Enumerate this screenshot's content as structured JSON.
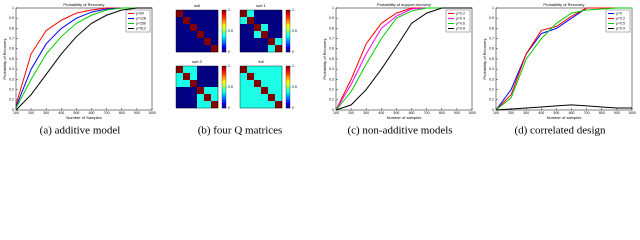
{
  "chart_data": [
    {
      "type": "line",
      "title": "Probability of Recovery",
      "xlabel": "Number of Samples",
      "ylabel": "Probability of Recovery",
      "x": [
        100,
        200,
        300,
        400,
        500,
        600,
        700,
        800,
        900,
        1000
      ],
      "series": [
        {
          "name": "p=64",
          "color": "#ff0000",
          "values": [
            0.05,
            0.55,
            0.78,
            0.88,
            0.95,
            0.98,
            1,
            1,
            1,
            1
          ]
        },
        {
          "name": "p=128",
          "color": "#0000ff",
          "values": [
            0.03,
            0.4,
            0.65,
            0.8,
            0.9,
            0.96,
            0.99,
            1,
            1,
            1
          ]
        },
        {
          "name": "p=256",
          "color": "#00cc00",
          "values": [
            0.02,
            0.3,
            0.55,
            0.72,
            0.85,
            0.93,
            0.98,
            1,
            1,
            1
          ]
        },
        {
          "name": "p=512",
          "color": "#000000",
          "values": [
            0,
            0.15,
            0.35,
            0.55,
            0.72,
            0.85,
            0.93,
            0.98,
            1,
            1
          ]
        }
      ],
      "xlim": [
        100,
        1000
      ],
      "ylim": [
        0,
        1
      ],
      "xticks": [
        100,
        200,
        300,
        400,
        500,
        600,
        700,
        800,
        900,
        1000
      ],
      "yticks": [
        0,
        0.1,
        0.2,
        0.3,
        0.4,
        0.5,
        0.6,
        0.7,
        0.8,
        0.9,
        1
      ],
      "legend": "upper right"
    },
    {
      "type": "heatmap",
      "title": "null",
      "values": [
        [
          1,
          0,
          0,
          0,
          0,
          0
        ],
        [
          0,
          1,
          0,
          0,
          0,
          0
        ],
        [
          0,
          0,
          1,
          0,
          0,
          0
        ],
        [
          0,
          0,
          0,
          1,
          0,
          0
        ],
        [
          0,
          0,
          0,
          0,
          1,
          0
        ],
        [
          0,
          0,
          0,
          0,
          0,
          1
        ]
      ],
      "zlim": [
        0,
        1
      ],
      "zticks": [
        0,
        0.5,
        1
      ]
    },
    {
      "type": "heatmap",
      "title": "sub 1",
      "values": [
        [
          1,
          0.4,
          0,
          0,
          0,
          0
        ],
        [
          0.4,
          1,
          0,
          0,
          0,
          0
        ],
        [
          0,
          0,
          1,
          0.4,
          0,
          0
        ],
        [
          0,
          0,
          0.4,
          1,
          0,
          0
        ],
        [
          0,
          0,
          0,
          0,
          1,
          0.4
        ],
        [
          0,
          0,
          0,
          0,
          0.4,
          1
        ]
      ],
      "zlim": [
        0,
        1
      ],
      "zticks": [
        0,
        0.5,
        1
      ]
    },
    {
      "type": "heatmap",
      "title": "sub 2",
      "values": [
        [
          1,
          0.4,
          0.4,
          0,
          0,
          0
        ],
        [
          0.4,
          1,
          0.4,
          0,
          0,
          0
        ],
        [
          0.4,
          0.4,
          1,
          0,
          0,
          0
        ],
        [
          0,
          0,
          0,
          1,
          0.4,
          0.4
        ],
        [
          0,
          0,
          0,
          0.4,
          1,
          0.4
        ],
        [
          0,
          0,
          0,
          0.4,
          0.4,
          1
        ]
      ],
      "zlim": [
        0,
        1
      ],
      "zticks": [
        0,
        0.5,
        1
      ]
    },
    {
      "type": "heatmap",
      "title": "full",
      "values": [
        [
          1,
          0.4,
          0.4,
          0.4,
          0.4,
          0.4
        ],
        [
          0.4,
          1,
          0.4,
          0.4,
          0.4,
          0.4
        ],
        [
          0.4,
          0.4,
          1,
          0.4,
          0.4,
          0.4
        ],
        [
          0.4,
          0.4,
          0.4,
          1,
          0.4,
          0.4
        ],
        [
          0.4,
          0.4,
          0.4,
          0.4,
          1,
          0.4
        ],
        [
          0.4,
          0.4,
          0.4,
          0.4,
          0.4,
          1
        ]
      ],
      "zlim": [
        0,
        1
      ],
      "zticks": [
        0,
        0.5,
        1
      ]
    },
    {
      "type": "line",
      "title": "Probability of support recovery",
      "xlabel": "Number of samples",
      "ylabel": "Probability of Recovery",
      "x": [
        100,
        200,
        300,
        400,
        500,
        600,
        700,
        800,
        900,
        1000
      ],
      "series": [
        {
          "name": "ρ=0.2",
          "color": "#ff0000",
          "values": [
            0,
            0.3,
            0.65,
            0.85,
            0.95,
            1,
            1,
            1,
            1,
            1
          ]
        },
        {
          "name": "ρ=0.4",
          "color": "#ff00ff",
          "values": [
            0,
            0.25,
            0.55,
            0.8,
            0.92,
            0.99,
            1,
            1,
            1,
            1
          ]
        },
        {
          "name": "ρ=0.6",
          "color": "#00cc00",
          "values": [
            0,
            0.18,
            0.45,
            0.7,
            0.9,
            0.97,
            1,
            1,
            1,
            1
          ]
        },
        {
          "name": "ρ=0.8",
          "color": "#000000",
          "values": [
            0,
            0.05,
            0.2,
            0.4,
            0.62,
            0.85,
            0.95,
            1,
            1,
            1
          ]
        }
      ],
      "xlim": [
        100,
        1000
      ],
      "ylim": [
        0,
        1
      ],
      "xticks": [
        100,
        200,
        300,
        400,
        500,
        600,
        700,
        800,
        900,
        1000
      ],
      "yticks": [
        0,
        0.1,
        0.2,
        0.3,
        0.4,
        0.5,
        0.6,
        0.7,
        0.8,
        0.9,
        1
      ],
      "legend": "upper right"
    },
    {
      "type": "line",
      "title": "Probability of Recovery",
      "xlabel": "Number of samples",
      "ylabel": "Probability of Recovery",
      "x": [
        100,
        200,
        300,
        400,
        500,
        600,
        700,
        800,
        900,
        1000
      ],
      "series": [
        {
          "name": "ρ=0",
          "color": "#0000ff",
          "values": [
            0,
            0.2,
            0.55,
            0.75,
            0.8,
            0.9,
            1,
            1,
            1,
            1
          ]
        },
        {
          "name": "ρ=0.2",
          "color": "#ff0000",
          "values": [
            0,
            0.15,
            0.55,
            0.78,
            0.82,
            0.92,
            1,
            1,
            1,
            1
          ]
        },
        {
          "name": "ρ=0.5",
          "color": "#00cc00",
          "values": [
            0,
            0.12,
            0.5,
            0.7,
            0.85,
            0.95,
            0.98,
            0.99,
            1,
            1
          ]
        },
        {
          "name": "ρ=0.9",
          "color": "#000000",
          "values": [
            0,
            0.01,
            0.02,
            0.03,
            0.04,
            0.05,
            0.04,
            0.03,
            0.02,
            0.02
          ]
        }
      ],
      "xlim": [
        100,
        1000
      ],
      "ylim": [
        0,
        1
      ],
      "xticks": [
        100,
        200,
        300,
        400,
        500,
        600,
        700,
        800,
        900,
        1000
      ],
      "yticks": [
        0,
        0.1,
        0.2,
        0.3,
        0.4,
        0.5,
        0.6,
        0.7,
        0.8,
        0.9,
        1
      ],
      "legend": "upper right"
    }
  ],
  "captions": [
    "(a) additive model",
    "(b) four Q matrices",
    "(c) non-additive models",
    "(d) correlated design"
  ]
}
